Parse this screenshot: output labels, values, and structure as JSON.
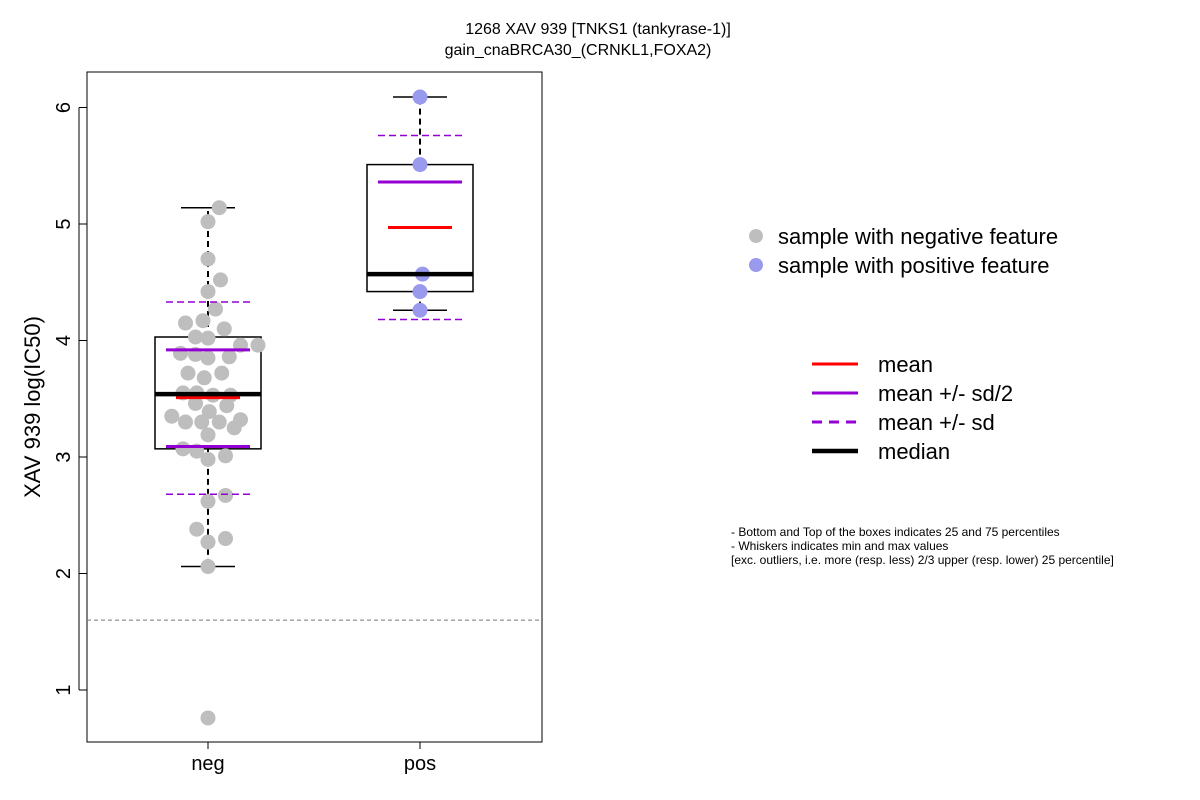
{
  "chart_data": {
    "type": "box",
    "title": [
      "1268 XAV 939 [TNKS1 (tankyrase-1)]",
      "gain_cnaBRCA30_(CRNKL1,FOXA2)"
    ],
    "ylabel": "XAV 939 log(IC50)",
    "xlabel": "",
    "ylim": [
      0.55,
      6.3
    ],
    "yticks": [
      1,
      2,
      3,
      4,
      5,
      6
    ],
    "reference_line": 1.6,
    "categories": [
      "neg",
      "pos"
    ],
    "groups": [
      {
        "name": "neg",
        "color": "#bebebe",
        "q1": 3.07,
        "median": 3.54,
        "q3": 4.03,
        "whisker_low": 2.06,
        "whisker_high": 5.14,
        "mean": 3.51,
        "sd_half_low": 3.09,
        "sd_half_high": 3.92,
        "sd_low": 2.68,
        "sd_high": 4.33,
        "points": [
          {
            "x": -0.29,
            "y": 3.35
          },
          {
            "x": -0.2,
            "y": 3.55
          },
          {
            "x": -0.09,
            "y": 3.55
          },
          {
            "x": 0.04,
            "y": 3.53
          },
          {
            "x": 0.18,
            "y": 3.53
          },
          {
            "x": -0.18,
            "y": 3.3
          },
          {
            "x": -0.05,
            "y": 3.3
          },
          {
            "x": 0.09,
            "y": 3.3
          },
          {
            "x": 0.21,
            "y": 3.25
          },
          {
            "x": 0.26,
            "y": 3.32
          },
          {
            "x": -0.1,
            "y": 3.46
          },
          {
            "x": 0.01,
            "y": 3.39
          },
          {
            "x": 0.15,
            "y": 3.44
          },
          {
            "x": -0.16,
            "y": 3.72
          },
          {
            "x": -0.03,
            "y": 3.68
          },
          {
            "x": 0.11,
            "y": 3.72
          },
          {
            "x": -0.22,
            "y": 3.89
          },
          {
            "x": -0.1,
            "y": 3.88
          },
          {
            "x": 0.0,
            "y": 3.85
          },
          {
            "x": 0.17,
            "y": 3.86
          },
          {
            "x": 0.26,
            "y": 3.96
          },
          {
            "x": 0.4,
            "y": 3.96
          },
          {
            "x": -0.1,
            "y": 4.03
          },
          {
            "x": 0.0,
            "y": 4.02
          },
          {
            "x": 0.13,
            "y": 4.1
          },
          {
            "x": -0.18,
            "y": 4.15
          },
          {
            "x": -0.04,
            "y": 4.17
          },
          {
            "x": 0.06,
            "y": 4.27
          },
          {
            "x": 0.0,
            "y": 4.42
          },
          {
            "x": 0.1,
            "y": 4.52
          },
          {
            "x": 0.0,
            "y": 4.7
          },
          {
            "x": 0.0,
            "y": 5.02
          },
          {
            "x": 0.09,
            "y": 5.14
          },
          {
            "x": -0.2,
            "y": 3.07
          },
          {
            "x": -0.09,
            "y": 3.05
          },
          {
            "x": 0.0,
            "y": 2.98
          },
          {
            "x": 0.14,
            "y": 3.01
          },
          {
            "x": 0.0,
            "y": 3.19
          },
          {
            "x": 0.14,
            "y": 2.67
          },
          {
            "x": 0.0,
            "y": 2.62
          },
          {
            "x": -0.09,
            "y": 2.38
          },
          {
            "x": 0.0,
            "y": 2.27
          },
          {
            "x": 0.14,
            "y": 2.3
          },
          {
            "x": 0.0,
            "y": 2.06
          },
          {
            "x": 0.0,
            "y": 0.76
          }
        ]
      },
      {
        "name": "pos",
        "color": "#9999ee",
        "q1": 4.42,
        "median": 4.57,
        "q3": 5.51,
        "whisker_low": 4.26,
        "whisker_high": 6.09,
        "mean": 4.97,
        "sd_half_low": 4.57,
        "sd_half_high": 5.36,
        "sd_low": 4.18,
        "sd_high": 5.76,
        "points": [
          {
            "x": 0.0,
            "y": 6.09
          },
          {
            "x": 0.0,
            "y": 5.51
          },
          {
            "x": 0.02,
            "y": 4.57
          },
          {
            "x": 0.0,
            "y": 4.42
          },
          {
            "x": 0.0,
            "y": 4.26
          }
        ]
      }
    ],
    "legend": {
      "points": [
        {
          "label": "sample with negative feature",
          "color": "#bebebe"
        },
        {
          "label": "sample with positive feature",
          "color": "#9999ee"
        }
      ],
      "lines": [
        {
          "label": "mean",
          "color": "#ff0000",
          "style": "solid"
        },
        {
          "label": "mean +/- sd/2",
          "color": "#9400d3",
          "style": "solid"
        },
        {
          "label": "mean +/- sd",
          "color": "#9400d3",
          "style": "dashed"
        },
        {
          "label": "median",
          "color": "#000000",
          "style": "thick"
        }
      ]
    },
    "notes": [
      "- Bottom and Top of the boxes indicates 25 and 75 percentiles",
      "- Whiskers indicates min and max values",
      "[exc. outliers, i.e. more (resp. less) 2/3 upper (resp. lower) 25 percentile]"
    ],
    "grid": false
  }
}
